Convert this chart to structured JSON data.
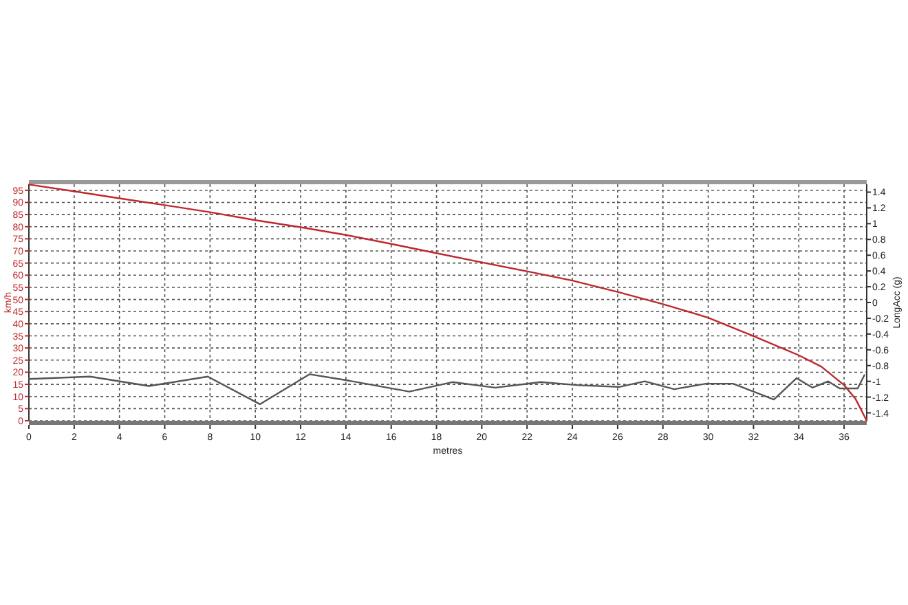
{
  "chart_data": {
    "type": "line",
    "xlabel": "metres",
    "ylabel": "km/h",
    "y2label": "LongAcc (g)",
    "xlim": [
      0,
      37
    ],
    "xticks": [
      0,
      2,
      4,
      6,
      8,
      10,
      12,
      14,
      16,
      18,
      20,
      22,
      24,
      26,
      28,
      30,
      32,
      34,
      36
    ],
    "ylim": [
      0,
      97.5
    ],
    "yticks": [
      0,
      5,
      10,
      15,
      20,
      25,
      30,
      35,
      40,
      45,
      50,
      55,
      60,
      65,
      70,
      75,
      80,
      85,
      90,
      95
    ],
    "y2lim": [
      -1.5,
      1.5
    ],
    "y2ticks": [
      -1.4,
      -1.2,
      -1,
      -0.8,
      -0.6,
      -0.4,
      -0.2,
      0,
      0.2,
      0.4,
      0.6,
      0.8,
      1,
      1.2,
      1.4
    ],
    "grid": true,
    "line_style": "solid",
    "series": [
      {
        "color": "#c0282d",
        "x": [
          0,
          2,
          4,
          6,
          8,
          10,
          12,
          14,
          16,
          18,
          20,
          22,
          24,
          26,
          28,
          30,
          32,
          34,
          35,
          36,
          36.5,
          37
        ],
        "values": [
          97.4,
          94.6,
          91.7,
          88.9,
          86,
          82.7,
          79.8,
          76.6,
          72.9,
          69.1,
          65.3,
          61.6,
          57.8,
          53.1,
          48.1,
          42.5,
          34.9,
          27,
          22.3,
          14.7,
          9.1,
          0
        ]
      },
      {
        "color": "#555555",
        "axis": "y2",
        "x": [
          0,
          2.7,
          5.3,
          7.9,
          10.2,
          12.4,
          14.1,
          16.8,
          18.7,
          20.6,
          22.6,
          24.3,
          26.1,
          27.2,
          28.5,
          29.9,
          31.1,
          32.9,
          33.9,
          34.6,
          35.3,
          35.8,
          36.6,
          36.9
        ],
        "values": [
          -0.97,
          -0.94,
          -1.06,
          -0.94,
          -1.29,
          -0.91,
          -0.99,
          -1.13,
          -1.01,
          -1.08,
          -1.01,
          -1.05,
          -1.07,
          -1,
          -1.1,
          -1.03,
          -1.03,
          -1.23,
          -0.96,
          -1.08,
          -1,
          -1.09,
          -1.09,
          -0.92
        ]
      }
    ]
  }
}
